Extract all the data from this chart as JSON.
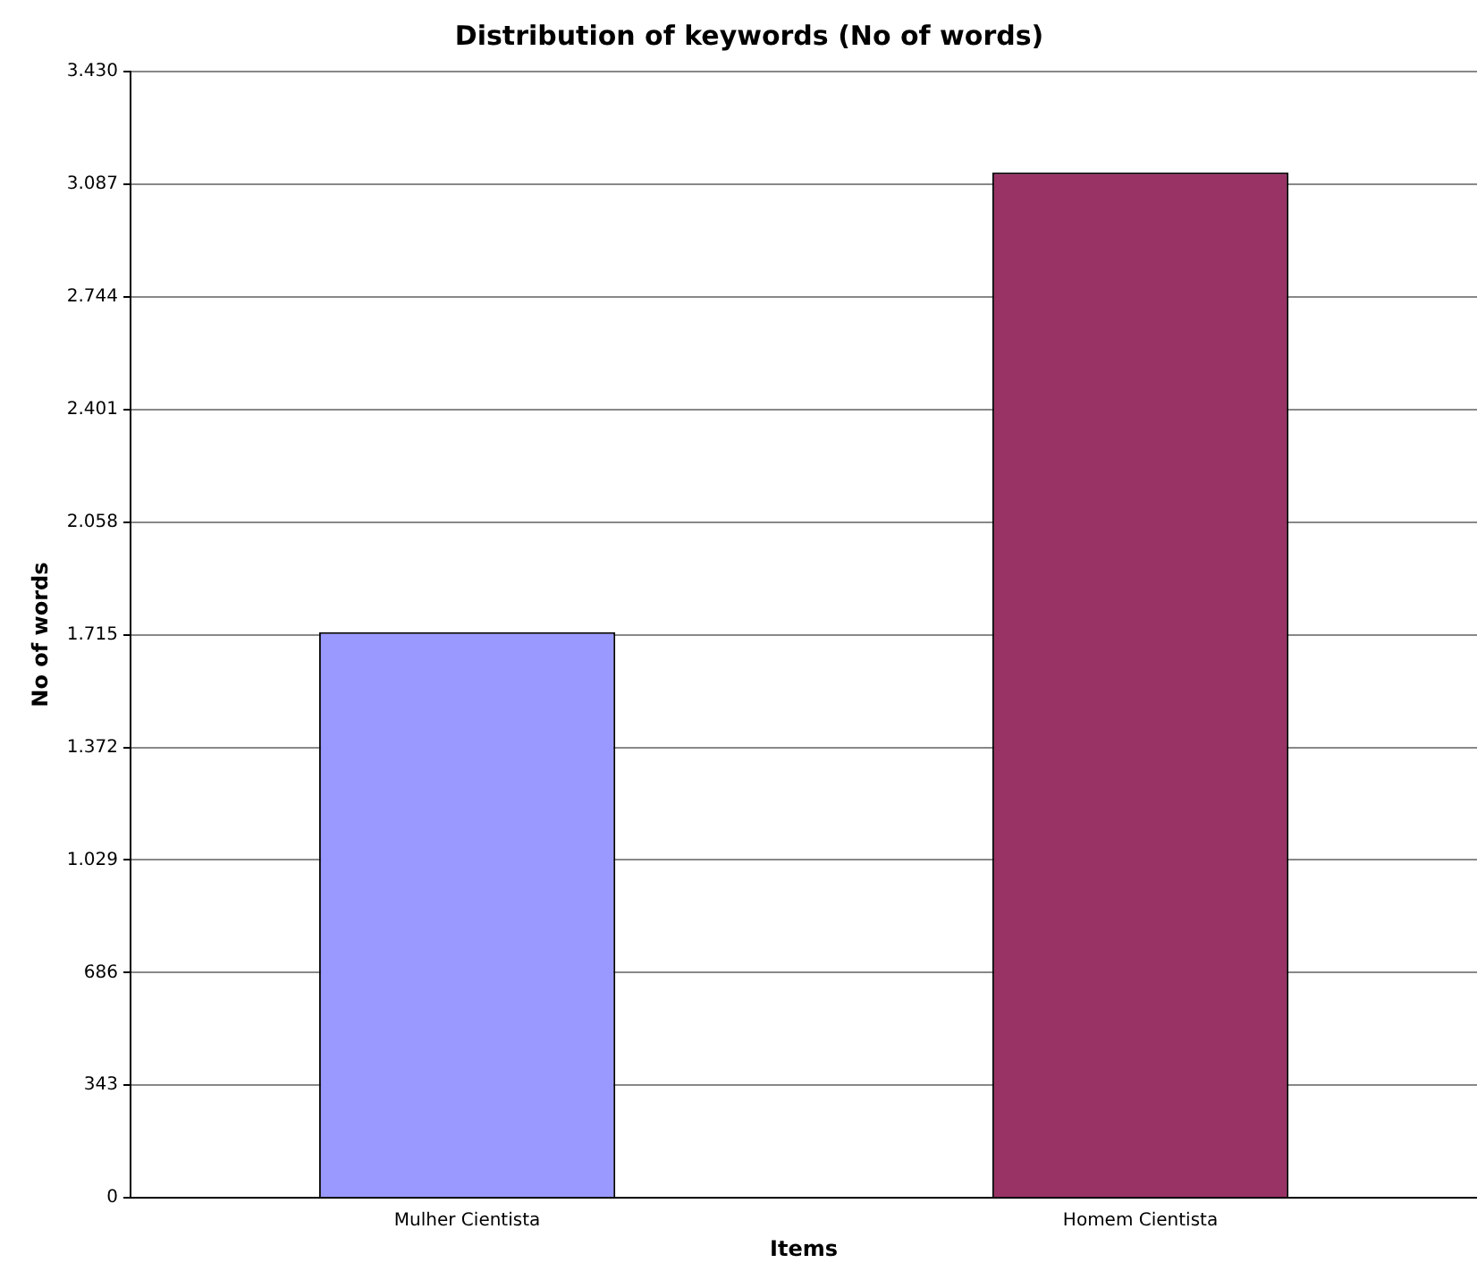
{
  "chart_data": {
    "type": "bar",
    "title": "Distribution of keywords (No of words)",
    "xlabel": "Items",
    "ylabel": "No of words",
    "categories": [
      "Mulher Cientista",
      "Homem Cientista"
    ],
    "values": [
      1723,
      3123
    ],
    "colors": [
      "#9999ff",
      "#993366"
    ],
    "ylim": [
      0,
      3430
    ],
    "yticks": [
      0,
      343,
      686,
      {
        "value": 1029,
        "label": "1.029"
      },
      {
        "value": 1372,
        "label": "1.372"
      },
      {
        "value": 1715,
        "label": "1.715"
      },
      {
        "value": 2058,
        "label": "2.058"
      },
      {
        "value": 2401,
        "label": "2.401"
      },
      {
        "value": 2744,
        "label": "2.744"
      },
      {
        "value": 3087,
        "label": "3.087"
      },
      {
        "value": 3430,
        "label": "3.430"
      }
    ],
    "grid": "y",
    "legend": false
  }
}
